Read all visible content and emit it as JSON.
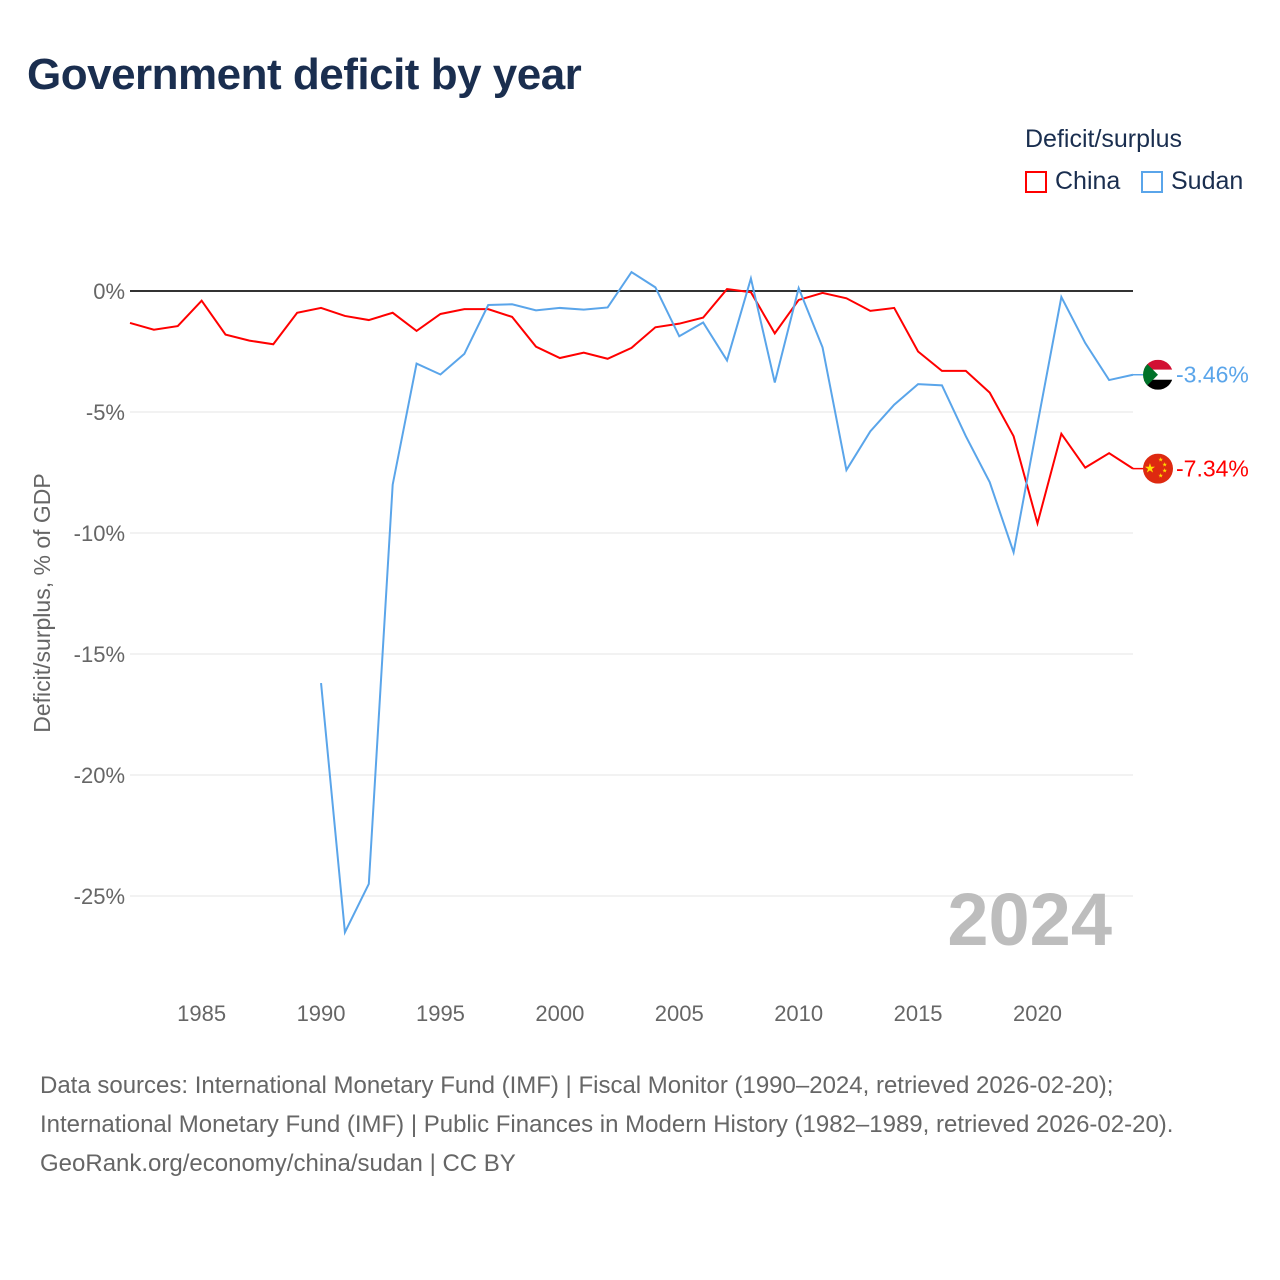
{
  "title": "Government deficit by year",
  "legend": {
    "title": "Deficit/surplus",
    "items": [
      {
        "name": "China",
        "color": "#ff0000"
      },
      {
        "name": "Sudan",
        "color": "#5aa5ea"
      }
    ]
  },
  "chart_data": {
    "type": "line",
    "ylabel": "Deficit/surplus, % of GDP",
    "xlabel": "",
    "xlim": [
      1982,
      2024
    ],
    "ylim": [
      -27.5,
      2
    ],
    "xticks": [
      1985,
      1990,
      1995,
      2000,
      2005,
      2010,
      2015,
      2020
    ],
    "yticks": [
      0,
      -5,
      -10,
      -15,
      -20,
      -25
    ],
    "ytick_labels": [
      "0%",
      "-5%",
      "-10%",
      "-15%",
      "-20%",
      "-25%"
    ],
    "year_watermark": "2024",
    "series": [
      {
        "name": "China",
        "color": "#ff0000",
        "end_label": "-7.34%",
        "x_start": 1982,
        "values": [
          -1.32,
          -1.6,
          -1.45,
          -0.4,
          -1.8,
          -2.05,
          -2.2,
          -0.9,
          -0.7,
          -1.03,
          -1.2,
          -0.9,
          -1.65,
          -0.95,
          -0.75,
          -0.75,
          -1.07,
          -2.3,
          -2.77,
          -2.55,
          -2.8,
          -2.35,
          -1.5,
          -1.35,
          -1.1,
          0.08,
          -0.05,
          -1.75,
          -0.37,
          -0.08,
          -0.3,
          -0.82,
          -0.7,
          -2.5,
          -3.3,
          -3.3,
          -4.2,
          -6.0,
          -9.6,
          -5.9,
          -7.3,
          -6.7,
          -7.34
        ]
      },
      {
        "name": "Sudan",
        "color": "#5aa5ea",
        "end_label": "-3.46%",
        "x_start": 1990,
        "values": [
          -16.2,
          -26.5,
          -24.5,
          -8.0,
          -3.0,
          -3.45,
          -2.6,
          -0.58,
          -0.55,
          -0.8,
          -0.7,
          -0.77,
          -0.68,
          0.78,
          0.15,
          -1.87,
          -1.3,
          -2.87,
          0.52,
          -3.78,
          0.12,
          -2.33,
          -7.4,
          -5.8,
          -4.7,
          -3.85,
          -3.9,
          -6.0,
          -7.9,
          -10.8,
          -5.5,
          -0.25,
          -2.15,
          -3.68,
          -3.46
        ]
      }
    ]
  },
  "footer": {
    "sources": "Data sources: International Monetary Fund (IMF) | Fiscal Monitor (1990–2024, retrieved 2026-02-20); International Monetary Fund (IMF) | Public Finances in Modern History (1982–1989, retrieved 2026-02-20).",
    "credit": "GeoRank.org/economy/china/sudan | CC BY"
  }
}
